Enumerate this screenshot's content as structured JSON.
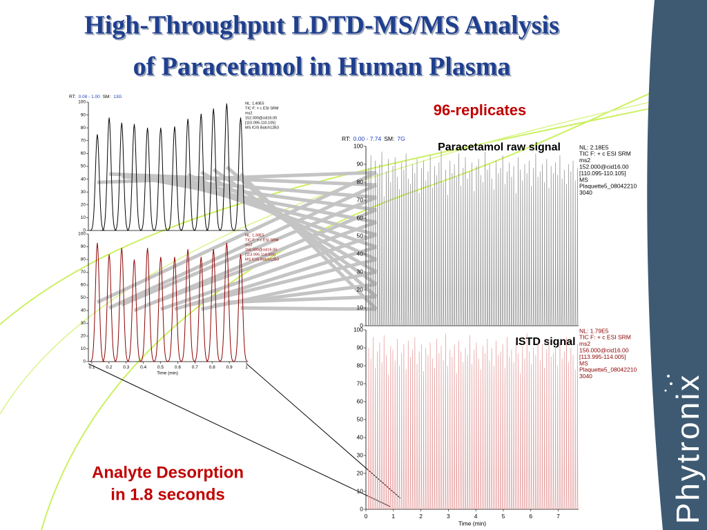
{
  "slide": {
    "title": [
      "High-Throughput LDTD-MS/MS Analysis",
      "of Paracetamol in Human Plasma"
    ],
    "replicates": "96-replicates",
    "desorption": [
      "Analyte Desorption",
      "in 1.8 seconds"
    ],
    "logo": "Phytronix"
  },
  "chart_data": [
    {
      "type": "line",
      "header": [
        "RT:",
        "0.08 - 1.00",
        "SM:",
        "13G"
      ],
      "notes": [
        "NL: 1.40E5",
        "TIC F: + c ESI SRM",
        "ms2",
        "152.000@cid16.00",
        "[110.095-110.105]",
        "MS  ICIS Batch12B3"
      ],
      "xlim": [
        0.08,
        1.0
      ],
      "ylim": [
        0,
        100
      ],
      "yticks": [
        0,
        10,
        20,
        30,
        40,
        50,
        60,
        70,
        80,
        90,
        100
      ],
      "x": [
        0.132,
        0.201,
        0.274,
        0.347,
        0.424,
        0.501,
        0.582,
        0.659,
        0.736,
        0.808,
        0.885,
        0.966
      ],
      "series": [
        {
          "color": "#000000",
          "values": [
            75,
            88,
            84,
            83,
            80,
            80,
            81,
            87,
            91,
            95,
            99,
            88
          ]
        }
      ]
    },
    {
      "type": "line",
      "notes": [
        "NL: 1.38E5",
        "TIC F: + c ESI SRM",
        "ms2",
        "156.000@cid16.00",
        "[113.995-114.005]",
        "MS  ICIS Batch12B3"
      ],
      "xlim": [
        0.08,
        1.0
      ],
      "ylim": [
        0,
        100
      ],
      "yticks": [
        0,
        10,
        20,
        30,
        40,
        50,
        60,
        70,
        80,
        90,
        100
      ],
      "xticks": [
        0.1,
        0.2,
        0.3,
        0.4,
        0.5,
        0.6,
        0.7,
        0.8,
        0.9,
        1.0
      ],
      "x_label": "Time (min)",
      "x": [
        0.132,
        0.201,
        0.274,
        0.347,
        0.424,
        0.501,
        0.582,
        0.659,
        0.736,
        0.808,
        0.885,
        0.966
      ],
      "series": [
        {
          "color": "#8b0000",
          "values": [
            93,
            84,
            89,
            80,
            89,
            82,
            82,
            88,
            82,
            88,
            93,
            84
          ]
        }
      ]
    },
    {
      "type": "line",
      "header": [
        "RT:",
        "0.00 - 7.74",
        "SM:",
        "7G"
      ],
      "annotation": "Paracetamol raw signal",
      "notes": [
        "NL: 2.18E5",
        "TIC F: + c ESI SRM",
        "ms2",
        "152.000@cid16.00",
        "[110.095-110.105]",
        "MS",
        "Plaquette5_08042210",
        "3040"
      ],
      "xlim": [
        0,
        7.74
      ],
      "ylim": [
        0,
        100
      ],
      "yticks": [
        0,
        10,
        20,
        30,
        40,
        50,
        60,
        70,
        80,
        90,
        100
      ],
      "x": [
        0.1,
        0.18,
        0.26,
        0.34,
        0.42,
        0.5,
        0.58,
        0.66,
        0.74,
        0.82,
        0.9,
        0.98,
        1.06,
        1.14,
        1.22,
        1.3,
        1.38,
        1.46,
        1.54,
        1.62,
        1.7,
        1.78,
        1.86,
        1.94,
        2.02,
        2.1,
        2.18,
        2.26,
        2.34,
        2.42,
        2.5,
        2.58,
        2.66,
        2.74,
        2.82,
        2.9,
        2.98,
        3.06,
        3.14,
        3.22,
        3.3,
        3.38,
        3.46,
        3.54,
        3.62,
        3.7,
        3.78,
        3.86,
        3.94,
        4.02,
        4.1,
        4.18,
        4.26,
        4.34,
        4.42,
        4.5,
        4.58,
        4.66,
        4.74,
        4.82,
        4.9,
        4.98,
        5.06,
        5.14,
        5.22,
        5.3,
        5.38,
        5.46,
        5.54,
        5.62,
        5.7,
        5.78,
        5.86,
        5.94,
        6.02,
        6.1,
        6.18,
        6.26,
        6.34,
        6.42,
        6.5,
        6.58,
        6.66,
        6.74,
        6.82,
        6.9,
        6.98,
        7.06,
        7.14,
        7.22,
        7.3,
        7.38,
        7.46,
        7.54,
        7.62,
        7.7
      ],
      "series": [
        {
          "color": "#8c8c8c",
          "values": [
            88,
            95,
            78,
            92,
            85,
            90,
            97,
            72,
            86,
            93,
            80,
            89,
            94,
            83,
            76,
            91,
            87,
            96,
            82,
            79,
            90,
            85,
            93,
            74,
            88,
            92,
            81,
            86,
            95,
            77,
            89,
            84,
            91,
            98,
            80,
            87,
            73,
            92,
            85,
            90,
            83,
            96,
            78,
            88,
            94,
            82,
            86,
            91,
            75,
            89,
            93,
            84,
            80,
            97,
            87,
            90,
            82,
            76,
            92,
            85,
            88,
            95,
            79,
            86,
            91,
            83,
            89,
            74,
            94,
            87,
            81,
            90,
            85,
            92,
            78,
            88,
            96,
            83,
            86,
            90,
            80,
            93,
            77,
            89,
            85,
            91,
            84,
            95,
            82,
            87,
            79,
            90,
            86,
            92,
            81,
            88
          ]
        }
      ]
    },
    {
      "type": "line",
      "annotation": "ISTD signal",
      "notes": [
        "NL: 1.79E5",
        "TIC F: + c ESI SRM",
        "ms2",
        "156.000@cid16.00",
        "[113.995-114.005]",
        "MS",
        "Plaquette5_08042210",
        "3040"
      ],
      "xlim": [
        0,
        7.74
      ],
      "ylim": [
        0,
        100
      ],
      "yticks": [
        0,
        10,
        20,
        30,
        40,
        50,
        60,
        70,
        80,
        90,
        100
      ],
      "xticks": [
        0,
        1,
        2,
        3,
        4,
        5,
        6,
        7
      ],
      "x_label": "Time (min)",
      "x": [
        0.1,
        0.18,
        0.26,
        0.34,
        0.42,
        0.5,
        0.58,
        0.66,
        0.74,
        0.82,
        0.9,
        0.98,
        1.06,
        1.14,
        1.22,
        1.3,
        1.38,
        1.46,
        1.54,
        1.62,
        1.7,
        1.78,
        1.86,
        1.94,
        2.02,
        2.1,
        2.18,
        2.26,
        2.34,
        2.42,
        2.5,
        2.58,
        2.66,
        2.74,
        2.82,
        2.9,
        2.98,
        3.06,
        3.14,
        3.22,
        3.3,
        3.38,
        3.46,
        3.54,
        3.62,
        3.7,
        3.78,
        3.86,
        3.94,
        4.02,
        4.1,
        4.18,
        4.26,
        4.34,
        4.42,
        4.5,
        4.58,
        4.66,
        4.74,
        4.82,
        4.9,
        4.98,
        5.06,
        5.14,
        5.22,
        5.3,
        5.38,
        5.46,
        5.54,
        5.62,
        5.7,
        5.78,
        5.86,
        5.94,
        6.02,
        6.1,
        6.18,
        6.26,
        6.34,
        6.42,
        6.5,
        6.58,
        6.66,
        6.74,
        6.82,
        6.9,
        6.98,
        7.06,
        7.14,
        7.22,
        7.3,
        7.38,
        7.46,
        7.54,
        7.62,
        7.7
      ],
      "series": [
        {
          "color": "#e49a9a",
          "values": [
            90,
            84,
            96,
            79,
            88,
            93,
            82,
            97,
            86,
            75,
            91,
            89,
            83,
            95,
            80,
            87,
            92,
            78,
            94,
            85,
            89,
            96,
            81,
            88,
            92,
            77,
            90,
            86,
            93,
            84,
            79,
            95,
            87,
            91,
            83,
            98,
            80,
            89,
            85,
            92,
            76,
            94,
            88,
            82,
            90,
            86,
            97,
            81,
            89,
            93,
            84,
            78,
            91,
            87,
            95,
            83,
            90,
            80,
            94,
            86,
            88,
            92,
            79,
            96,
            85,
            89,
            82,
            93,
            87,
            76,
            91,
            84,
            98,
            88,
            81,
            90,
            86,
            94,
            83,
            92,
            79,
            89,
            95,
            85,
            87,
            91,
            80,
            93,
            84,
            88,
            96,
            82,
            90,
            86,
            78,
            92
          ]
        }
      ]
    }
  ]
}
